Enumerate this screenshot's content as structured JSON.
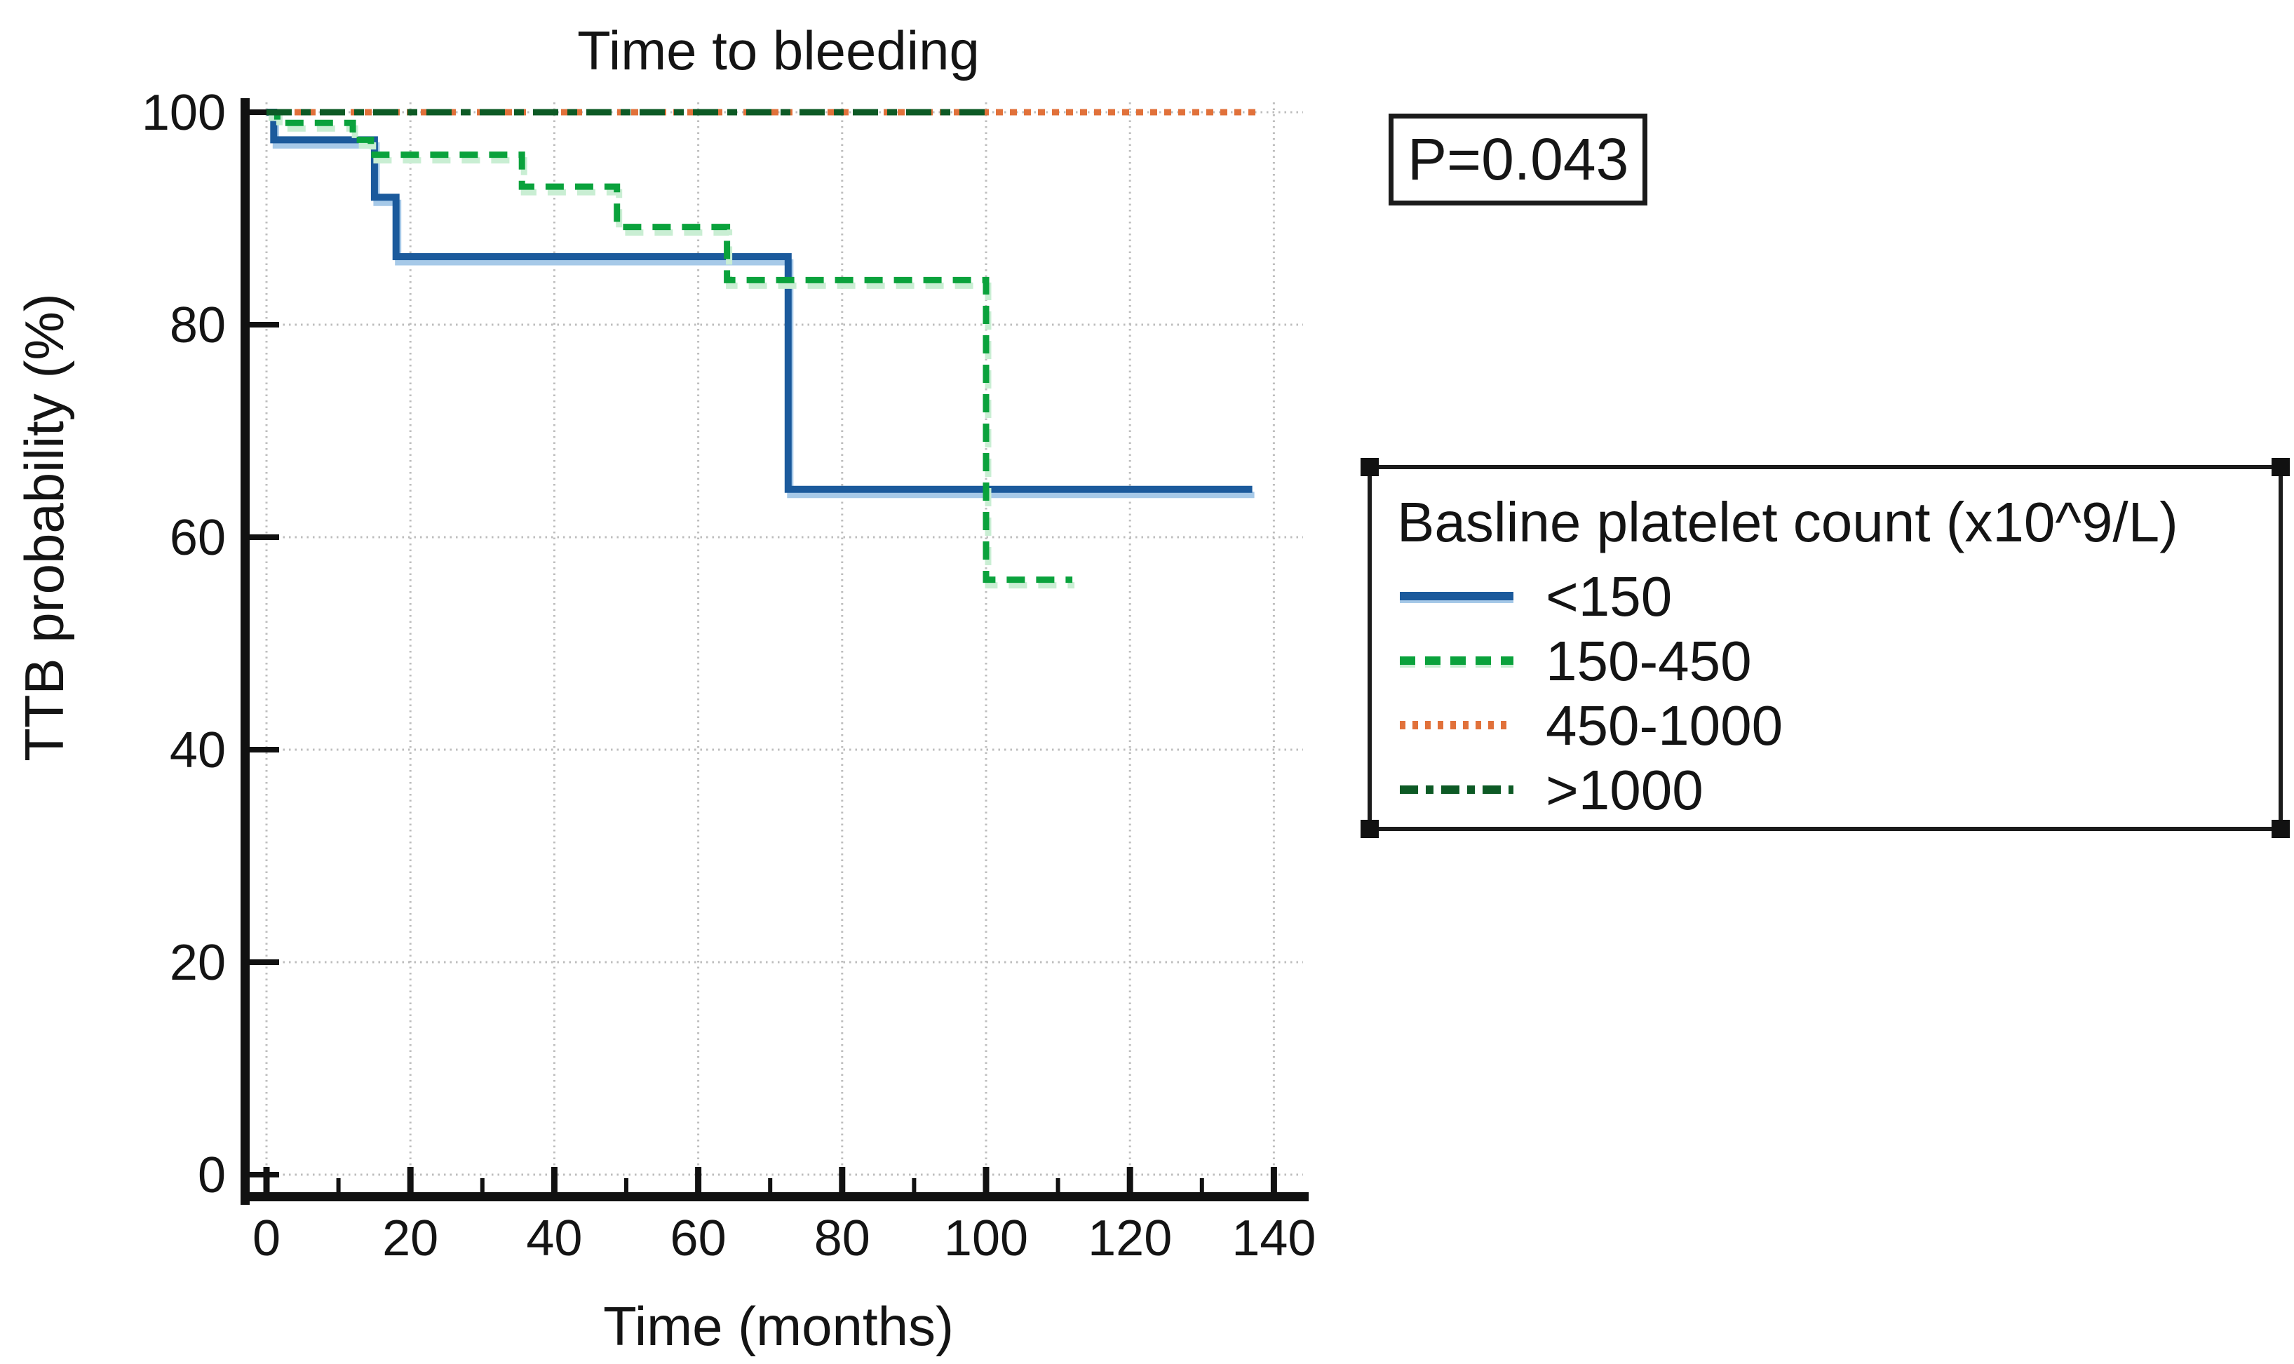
{
  "page": {
    "background": "#ffffff",
    "text_color": "#141414"
  },
  "chart_data": {
    "type": "line",
    "subtype": "kaplan-meier-step",
    "title": "Time to bleeding",
    "xlabel": "Time (months)",
    "ylabel": "TTB probability (%)",
    "xlim": [
      0,
      140
    ],
    "ylim": [
      0,
      100
    ],
    "xticks": [
      0,
      20,
      40,
      60,
      80,
      100,
      120,
      140
    ],
    "xminorticks": [
      10,
      30,
      50,
      70,
      90,
      110,
      130
    ],
    "yticks": [
      100,
      80,
      60,
      40,
      20,
      0
    ],
    "grid": true,
    "grid_color": "#bdbdbd",
    "axis_color": "#111111",
    "annotation": {
      "label": "P=0.043"
    },
    "legend": {
      "title": "Basline platelet count (x10^9/L)",
      "position": "right",
      "selected_handles": true,
      "entries": [
        "<150",
        "150-450",
        "450-1000",
        ">1000"
      ]
    },
    "series": [
      {
        "name": "<150",
        "color": "#1b5a9c",
        "halo_color": "#a6c9e8",
        "style": "solid",
        "z": 1,
        "points": [
          [
            0,
            100
          ],
          [
            1,
            100
          ],
          [
            1,
            97.4
          ],
          [
            15,
            97.4
          ],
          [
            15,
            92
          ],
          [
            18,
            92
          ],
          [
            18,
            86.4
          ],
          [
            72.5,
            86.4
          ],
          [
            72.5,
            64.5
          ],
          [
            137,
            64.5
          ]
        ]
      },
      {
        "name": "150-450",
        "color": "#0aa23c",
        "halo_color": "#c9eed3",
        "style": "dashed",
        "z": 2,
        "points": [
          [
            0,
            100
          ],
          [
            1.5,
            100
          ],
          [
            1.5,
            99
          ],
          [
            12,
            99
          ],
          [
            12,
            97.4
          ],
          [
            14.5,
            97.4
          ],
          [
            14.5,
            96
          ],
          [
            35.5,
            96
          ],
          [
            35.5,
            93
          ],
          [
            48.7,
            93
          ],
          [
            48.7,
            89.2
          ],
          [
            64,
            89.2
          ],
          [
            64,
            84.2
          ],
          [
            100,
            84.2
          ],
          [
            100,
            56
          ],
          [
            112,
            56
          ]
        ]
      },
      {
        "name": "450-1000",
        "color": "#e1713a",
        "style": "dotted",
        "z": 0,
        "points": [
          [
            0,
            100
          ],
          [
            138,
            100
          ]
        ]
      },
      {
        "name": ">1000",
        "color": "#0d5a25",
        "style": "dashdot",
        "z": 3,
        "points": [
          [
            0,
            100
          ],
          [
            101,
            100
          ]
        ]
      }
    ]
  }
}
